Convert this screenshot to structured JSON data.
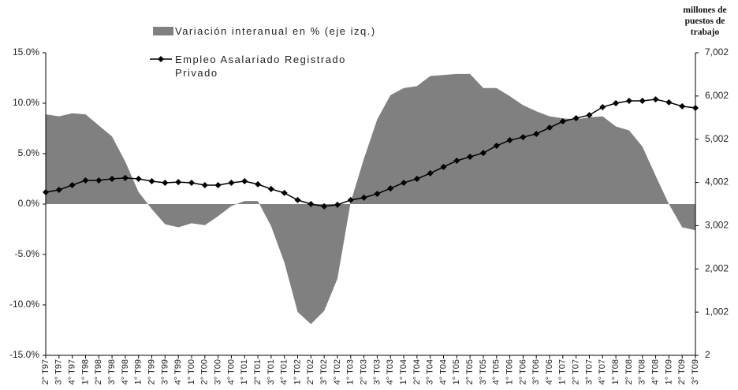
{
  "chart_data": {
    "type": "area-line",
    "y2_label": "millones de puestos de trabajo",
    "categories": [
      "2° T97",
      "3° T97",
      "4° T97",
      "1° T98",
      "2° T98",
      "3° T98",
      "4° T98",
      "1° T99",
      "2° T99",
      "3° T99",
      "4° T99",
      "1° T00",
      "2° T00",
      "3° T00",
      "4° T00",
      "1° T01",
      "2° T01",
      "3° T01",
      "4° T01",
      "1° T02",
      "2° T02",
      "3° T02",
      "4° T02",
      "1° T03",
      "2° T03",
      "3° T03",
      "4° T03",
      "1° T04",
      "2° T04",
      "3° T04",
      "4° T04",
      "1° T05",
      "2° T05",
      "3° T05",
      "4° T05",
      "1° T06",
      "2° T06",
      "3° T06",
      "4° T06",
      "1° T07",
      "2° T07",
      "3° T07",
      "4° T07",
      "1° T08",
      "2° T08",
      "3° T08",
      "4° T08",
      "1° T09",
      "2° T09",
      "3° T09"
    ],
    "series": [
      {
        "name": "Variación interanual en % (eje izq.)",
        "color": "#808080",
        "kind": "area",
        "values": [
          8.9,
          8.7,
          9.0,
          8.9,
          7.8,
          6.7,
          4.2,
          1.2,
          -0.5,
          -2.0,
          -2.3,
          -1.9,
          -2.1,
          -1.2,
          -0.2,
          0.3,
          0.3,
          -2.2,
          -5.8,
          -10.7,
          -11.9,
          -10.6,
          -7.4,
          0.2,
          4.5,
          8.4,
          10.8,
          11.5,
          11.7,
          12.7,
          12.8,
          12.9,
          12.9,
          11.5,
          11.5,
          10.7,
          9.8,
          9.2,
          8.7,
          8.5,
          8.4,
          8.6,
          8.7,
          7.7,
          7.3,
          5.7,
          2.8,
          0.0,
          -2.3,
          -2.6
        ]
      },
      {
        "name": "Empleo Asalariado Registrado Privado",
        "color": "#000000",
        "kind": "line",
        "axis": "y2",
        "marker": "diamond",
        "values": [
          3775,
          3830,
          3940,
          4050,
          4050,
          4085,
          4105,
          4085,
          4030,
          3995,
          4010,
          3995,
          3940,
          3940,
          3995,
          4030,
          3960,
          3850,
          3760,
          3595,
          3502,
          3450,
          3485,
          3595,
          3650,
          3740,
          3865,
          3995,
          4085,
          4215,
          4360,
          4505,
          4595,
          4685,
          4850,
          4980,
          5050,
          5125,
          5270,
          5415,
          5490,
          5560,
          5745,
          5835,
          5890,
          5890,
          5925,
          5855,
          5765,
          5725
        ]
      }
    ],
    "ylim": [
      -15,
      15
    ],
    "yticks": [
      {
        "value": -15,
        "label": "-15.0%"
      },
      {
        "value": -10,
        "label": "-10.0%"
      },
      {
        "value": -5,
        "label": "-5.0%"
      },
      {
        "value": 0,
        "label": "0.0%"
      },
      {
        "value": 5,
        "label": "5.0%"
      },
      {
        "value": 10,
        "label": "10.0%"
      },
      {
        "value": 15,
        "label": "15.0%"
      }
    ],
    "y2lim": [
      2,
      7002
    ],
    "y2ticks": [
      2,
      {
        "value": 1002,
        "label": "1,002"
      },
      {
        "value": 2002,
        "label": "2,002"
      },
      {
        "value": 3002,
        "label": "3,002"
      },
      {
        "value": 4002,
        "label": "4,002"
      },
      {
        "value": 5002,
        "label": "5,002"
      },
      {
        "value": 6002,
        "label": "6,002"
      },
      {
        "value": 7002,
        "label": "7,002"
      }
    ],
    "grid": false
  }
}
